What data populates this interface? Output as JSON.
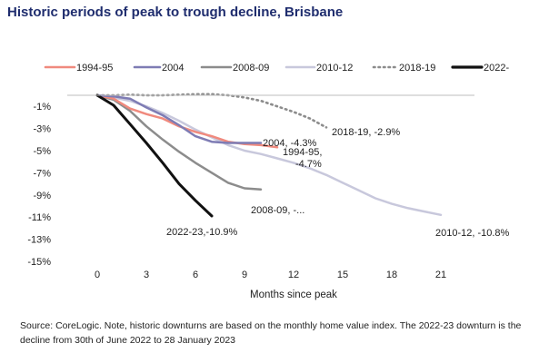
{
  "chart_data": {
    "type": "line",
    "title": "Historic periods of peak to trough decline, Brisbane",
    "xlabel": "Months since peak",
    "ylabel": "",
    "xlim": [
      -2.5,
      23.5
    ],
    "ylim": [
      -15,
      0
    ],
    "x_ticks": [
      0,
      3,
      6,
      9,
      12,
      15,
      18,
      21
    ],
    "y_ticks": [
      -1,
      -3,
      -5,
      -7,
      -9,
      -11,
      -13,
      -15
    ],
    "y_tick_labels": [
      "-1%",
      "-3%",
      "-5%",
      "-7%",
      "-9%",
      "-11%",
      "-13%",
      "-15%"
    ],
    "grid": false,
    "legend_position": "top",
    "series": [
      {
        "name": "1994-95",
        "color": "#f08a7e",
        "dash": "solid",
        "x": [
          0,
          1,
          2,
          3,
          4,
          5,
          6,
          7,
          8,
          9,
          10,
          11
        ],
        "y": [
          0,
          -0.3,
          -1.2,
          -1.7,
          -2.1,
          -2.8,
          -3.3,
          -3.7,
          -4.2,
          -4.4,
          -4.5,
          -4.7
        ],
        "label": "1994-95,\n-4.7%"
      },
      {
        "name": "2004",
        "color": "#7e7cb4",
        "dash": "solid",
        "x": [
          0,
          1,
          2,
          3,
          4,
          5,
          6,
          7,
          8,
          9,
          10
        ],
        "y": [
          0,
          -0.1,
          -0.3,
          -1.1,
          -1.8,
          -2.7,
          -3.7,
          -4.2,
          -4.3,
          -4.3,
          -4.3
        ],
        "label": "2004, -4.3%"
      },
      {
        "name": "2008-09",
        "color": "#8c8c8c",
        "dash": "solid",
        "x": [
          0,
          1,
          2,
          3,
          4,
          5,
          6,
          7,
          8,
          9,
          10
        ],
        "y": [
          0,
          -0.4,
          -1.4,
          -2.8,
          -4.0,
          -5.1,
          -6.1,
          -7.0,
          -7.9,
          -8.4,
          -8.5
        ],
        "label": "2008-09, -..."
      },
      {
        "name": "2010-12",
        "color": "#c8c8dc",
        "dash": "solid",
        "x": [
          0,
          1,
          2,
          3,
          4,
          5,
          6,
          7,
          8,
          9,
          10,
          11,
          12,
          13,
          14,
          15,
          16,
          17,
          18,
          19,
          20,
          21
        ],
        "y": [
          0,
          -0.2,
          -0.5,
          -1.0,
          -1.6,
          -2.3,
          -3.1,
          -3.8,
          -4.5,
          -5.0,
          -5.3,
          -5.7,
          -6.1,
          -6.6,
          -7.2,
          -7.9,
          -8.6,
          -9.3,
          -9.8,
          -10.2,
          -10.5,
          -10.8
        ],
        "label": "2010-12, -10.8%"
      },
      {
        "name": "2018-19",
        "color": "#8c8c8c",
        "dash": "dotted",
        "x": [
          0,
          1,
          2,
          3,
          4,
          5,
          6,
          7,
          8,
          9,
          10,
          11,
          12,
          13,
          14
        ],
        "y": [
          0,
          0,
          0.05,
          0,
          0,
          0.05,
          0.1,
          0.1,
          0,
          -0.2,
          -0.5,
          -1.0,
          -1.5,
          -2.1,
          -2.9
        ],
        "label": "2018-19, -2.9%"
      },
      {
        "name": "2022-",
        "color": "#111111",
        "dash": "solid",
        "x": [
          0,
          1,
          2,
          3,
          4,
          5,
          6,
          7
        ],
        "y": [
          0,
          -0.9,
          -2.6,
          -4.3,
          -6.1,
          -8.0,
          -9.5,
          -10.9
        ],
        "label": "2022-23,-10.9%"
      }
    ]
  },
  "source_note": "Source: CoreLogic. Note, historic downturns are based on the monthly home value index. The 2022-23 downturn is the decline from 30th of June 2022 to 28 January 2023"
}
